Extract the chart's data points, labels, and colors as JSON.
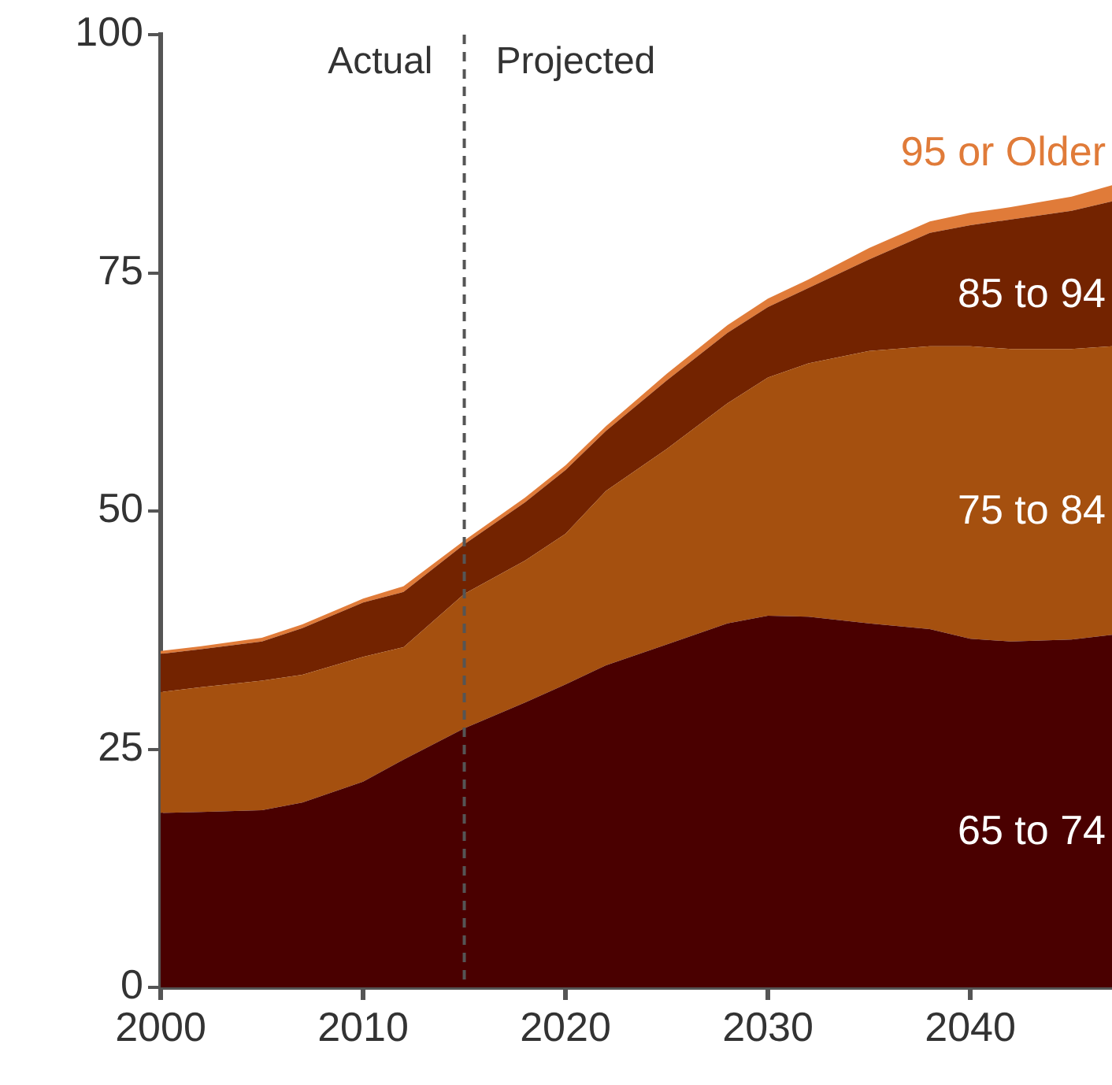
{
  "chart_data": {
    "type": "area",
    "stacked": true,
    "grid": false,
    "legend": false,
    "x": [
      2000,
      2002,
      2005,
      2007,
      2010,
      2012,
      2015,
      2018,
      2020,
      2022,
      2025,
      2028,
      2030,
      2032,
      2035,
      2038,
      2040,
      2042,
      2045,
      2047
    ],
    "xlim": [
      2000,
      2047
    ],
    "xticks": [
      2000,
      2010,
      2020,
      2030,
      2040
    ],
    "ylim": [
      0,
      100
    ],
    "yticks": [
      0,
      25,
      50,
      75,
      100
    ],
    "series": [
      {
        "name": "65 to 74",
        "color": "#4a0000",
        "values": [
          18.3,
          18.4,
          18.6,
          19.4,
          21.6,
          23.9,
          27.2,
          29.9,
          31.8,
          33.8,
          36.0,
          38.2,
          39.0,
          38.9,
          38.2,
          37.6,
          36.6,
          36.3,
          36.5,
          37.0
        ]
      },
      {
        "name": "75 to 84",
        "color": "#a5500f",
        "values": [
          12.7,
          13.1,
          13.6,
          13.4,
          13.1,
          11.8,
          14.1,
          14.9,
          15.8,
          18.3,
          20.5,
          23.1,
          25.0,
          26.6,
          28.6,
          29.7,
          30.7,
          30.7,
          30.5,
          30.3
        ]
      },
      {
        "name": "85 to 94",
        "color": "#732300",
        "values": [
          4.0,
          4.0,
          4.1,
          4.9,
          5.7,
          5.8,
          5.2,
          6.1,
          6.7,
          6.3,
          7.2,
          7.4,
          7.4,
          7.9,
          9.6,
          11.9,
          12.7,
          13.6,
          14.5,
          15.2
        ]
      },
      {
        "name": "95 or Older",
        "color": "#e07b39",
        "values": [
          0.3,
          0.3,
          0.4,
          0.4,
          0.4,
          0.6,
          0.4,
          0.5,
          0.5,
          0.5,
          0.7,
          0.8,
          0.9,
          0.9,
          1.2,
          1.2,
          1.3,
          1.3,
          1.5,
          1.7
        ]
      }
    ],
    "ref_lines": [
      {
        "axis": "x",
        "value": 2015,
        "line_style": "dashed",
        "color": "#555555"
      }
    ],
    "annotations": [
      "Actual",
      "Projected"
    ]
  }
}
